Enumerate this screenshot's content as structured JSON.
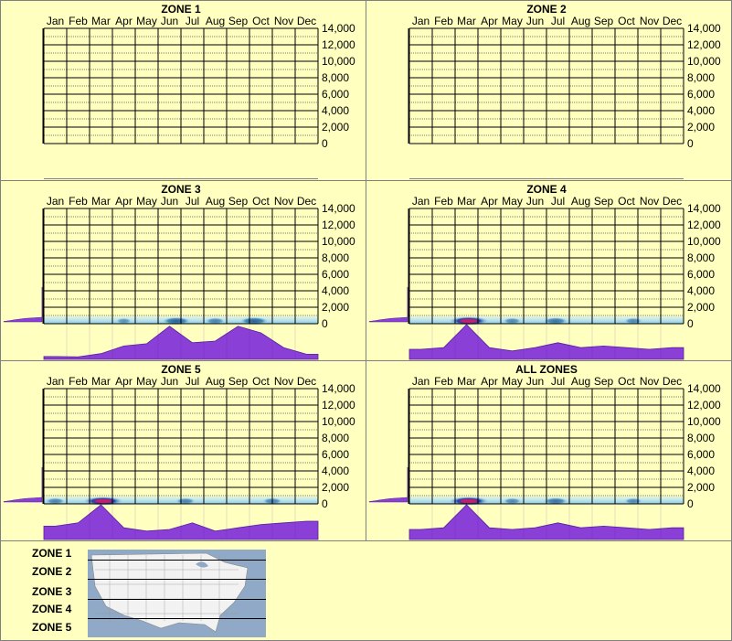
{
  "months": [
    "Jan",
    "Feb",
    "Mar",
    "Apr",
    "May",
    "Jun",
    "Jul",
    "Aug",
    "Sep",
    "Oct",
    "Nov",
    "Dec"
  ],
  "y_ticks": [
    "14,000",
    "12,000",
    "10,000",
    "8,000",
    "6,000",
    "4,000",
    "2,000",
    "0"
  ],
  "colors": {
    "background": "#FFFFC0",
    "profile_fill": "#8A3FD6",
    "profile_stroke": "#5B1FA0",
    "heat_low": "#9FD8F0",
    "heat_mid": "#1E6FA8",
    "heat_high": "#C01E6E",
    "grid": "#000000",
    "map_water": "#8FA9C6",
    "map_land": "#F2F2F2"
  },
  "chart_data": [
    {
      "type": "heatmap",
      "title": "ZONE 1",
      "x": [
        "Jan",
        "Feb",
        "Mar",
        "Apr",
        "May",
        "Jun",
        "Jul",
        "Aug",
        "Sep",
        "Oct",
        "Nov",
        "Dec"
      ],
      "ylim": [
        0,
        14000
      ],
      "y_ticks": [
        0,
        2000,
        4000,
        6000,
        8000,
        10000,
        12000,
        14000
      ],
      "monthly_profile": [
        0,
        0,
        0,
        0,
        0,
        0,
        0,
        0,
        0,
        0,
        0,
        0
      ],
      "elevation_profile": [
        0,
        0,
        0,
        0,
        0,
        0,
        0,
        0,
        0,
        0,
        0,
        0
      ],
      "hotspots": []
    },
    {
      "type": "heatmap",
      "title": "ZONE 2",
      "x": [
        "Jan",
        "Feb",
        "Mar",
        "Apr",
        "May",
        "Jun",
        "Jul",
        "Aug",
        "Sep",
        "Oct",
        "Nov",
        "Dec"
      ],
      "ylim": [
        0,
        14000
      ],
      "y_ticks": [
        0,
        2000,
        4000,
        6000,
        8000,
        10000,
        12000,
        14000
      ],
      "monthly_profile": [
        0,
        0,
        0,
        0,
        0,
        0,
        0,
        0,
        0,
        0,
        0,
        0
      ],
      "elevation_profile": [
        0,
        0,
        0,
        0,
        0,
        0,
        0,
        0,
        0,
        0,
        0,
        0
      ],
      "hotspots": []
    },
    {
      "type": "heatmap",
      "title": "ZONE 3",
      "x": [
        "Jan",
        "Feb",
        "Mar",
        "Apr",
        "May",
        "Jun",
        "Jul",
        "Aug",
        "Sep",
        "Oct",
        "Nov",
        "Dec"
      ],
      "ylim": [
        0,
        14000
      ],
      "y_ticks": [
        0,
        2000,
        4000,
        6000,
        8000,
        10000,
        12000,
        14000
      ],
      "monthly_profile": [
        0.03,
        0.02,
        0.12,
        0.35,
        0.42,
        0.95,
        0.45,
        0.5,
        0.95,
        0.75,
        0.3,
        0.1
      ],
      "elevation_profile": [
        0.1,
        0.2,
        0.3,
        0.45,
        0.55,
        0.65,
        0.75,
        0.8,
        0.85,
        0.9,
        0.95,
        1.0
      ],
      "hotspots": [
        {
          "month": 5.8,
          "elev": 300,
          "intensity": 0.6
        },
        {
          "month": 9.2,
          "elev": 300,
          "intensity": 0.6
        },
        {
          "month": 3.5,
          "elev": 300,
          "intensity": 0.15
        },
        {
          "month": 7.5,
          "elev": 300,
          "intensity": 0.3
        }
      ]
    },
    {
      "type": "heatmap",
      "title": "ZONE 4",
      "x": [
        "Jan",
        "Feb",
        "Mar",
        "Apr",
        "May",
        "Jun",
        "Jul",
        "Aug",
        "Sep",
        "Oct",
        "Nov",
        "Dec"
      ],
      "ylim": [
        0,
        14000
      ],
      "y_ticks": [
        0,
        2000,
        4000,
        6000,
        8000,
        10000,
        12000,
        14000
      ],
      "monthly_profile": [
        0.25,
        0.3,
        1.0,
        0.3,
        0.2,
        0.3,
        0.45,
        0.3,
        0.35,
        0.3,
        0.25,
        0.3
      ],
      "elevation_profile": [
        0.1,
        0.2,
        0.3,
        0.45,
        0.55,
        0.65,
        0.75,
        0.8,
        0.85,
        0.9,
        0.95,
        1.0
      ],
      "hotspots": [
        {
          "month": 2.6,
          "elev": 200,
          "intensity": 1.0
        },
        {
          "month": 6.4,
          "elev": 200,
          "intensity": 0.45
        },
        {
          "month": 4.5,
          "elev": 200,
          "intensity": 0.25
        },
        {
          "month": 9.8,
          "elev": 200,
          "intensity": 0.25
        }
      ]
    },
    {
      "type": "heatmap",
      "title": "ZONE 5",
      "x": [
        "Jan",
        "Feb",
        "Mar",
        "Apr",
        "May",
        "Jun",
        "Jul",
        "Aug",
        "Sep",
        "Oct",
        "Nov",
        "Dec"
      ],
      "ylim": [
        0,
        14000
      ],
      "y_ticks": [
        0,
        2000,
        4000,
        6000,
        8000,
        10000,
        12000,
        14000
      ],
      "monthly_profile": [
        0.35,
        0.45,
        1.0,
        0.3,
        0.2,
        0.25,
        0.45,
        0.2,
        0.3,
        0.4,
        0.45,
        0.5
      ],
      "elevation_profile": [
        0.1,
        0.2,
        0.3,
        0.45,
        0.55,
        0.65,
        0.75,
        0.8,
        0.85,
        0.9,
        0.95,
        1.0
      ],
      "hotspots": [
        {
          "month": 2.6,
          "elev": 200,
          "intensity": 1.0
        },
        {
          "month": 6.2,
          "elev": 200,
          "intensity": 0.3
        },
        {
          "month": 10.0,
          "elev": 200,
          "intensity": 0.3
        },
        {
          "month": 0.5,
          "elev": 200,
          "intensity": 0.3
        }
      ]
    },
    {
      "type": "heatmap",
      "title": "ALL ZONES",
      "x": [
        "Jan",
        "Feb",
        "Mar",
        "Apr",
        "May",
        "Jun",
        "Jul",
        "Aug",
        "Sep",
        "Oct",
        "Nov",
        "Dec"
      ],
      "ylim": [
        0,
        14000
      ],
      "y_ticks": [
        0,
        2000,
        4000,
        6000,
        8000,
        10000,
        12000,
        14000
      ],
      "monthly_profile": [
        0.25,
        0.3,
        1.0,
        0.3,
        0.25,
        0.3,
        0.45,
        0.3,
        0.35,
        0.3,
        0.25,
        0.3
      ],
      "elevation_profile": [
        0.1,
        0.2,
        0.3,
        0.45,
        0.55,
        0.65,
        0.75,
        0.8,
        0.85,
        0.9,
        0.95,
        1.0
      ],
      "hotspots": [
        {
          "month": 2.6,
          "elev": 200,
          "intensity": 1.0
        },
        {
          "month": 6.4,
          "elev": 200,
          "intensity": 0.45
        },
        {
          "month": 4.5,
          "elev": 200,
          "intensity": 0.25
        },
        {
          "month": 9.8,
          "elev": 200,
          "intensity": 0.25
        }
      ]
    }
  ],
  "legend": {
    "zones": [
      "ZONE 1",
      "ZONE 2",
      "ZONE 3",
      "ZONE 4",
      "ZONE 5"
    ]
  }
}
